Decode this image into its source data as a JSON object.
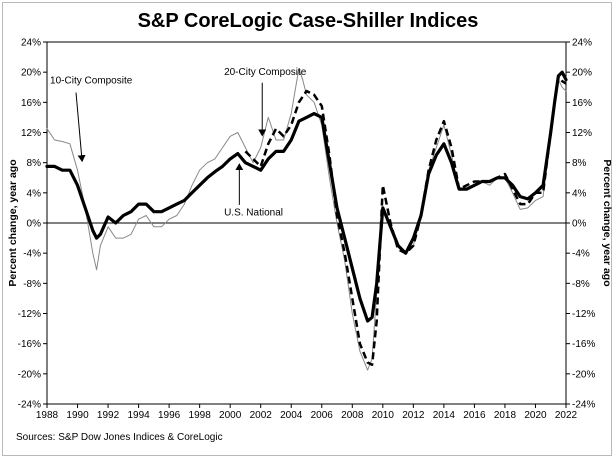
{
  "chart_data": {
    "type": "line",
    "title": "S&P CoreLogic Case-Shiller Indices",
    "ylabel": "Percent change, year ago",
    "ylabel_right": "Percent change, year ago",
    "source": "Sources: S&P Dow Jones Indices & CoreLogic",
    "xlim": [
      1988,
      2022
    ],
    "ylim": [
      -24,
      24
    ],
    "x_ticks": [
      "1988",
      "1990",
      "1992",
      "1994",
      "1996",
      "1998",
      "2000",
      "2002",
      "2004",
      "2006",
      "2008",
      "2010",
      "2012",
      "2014",
      "2016",
      "2018",
      "2020",
      "2022"
    ],
    "y_ticks": [
      "24%",
      "20%",
      "16%",
      "12%",
      "8%",
      "4%",
      "0%",
      "-4%",
      "-8%",
      "-12%",
      "-16%",
      "-20%",
      "-24%"
    ],
    "grid": false,
    "annotations": [
      {
        "text": "10-City Composite",
        "series": "10-City Composite"
      },
      {
        "text": "20-City Composite",
        "series": "20-City Composite"
      },
      {
        "text": "U.S. National",
        "series": "U.S. National"
      }
    ],
    "series": [
      {
        "name": "10-City Composite",
        "style": "thin",
        "color": "#888888",
        "points": [
          [
            1988,
            12.5
          ],
          [
            1988.5,
            11
          ],
          [
            1989,
            10.8
          ],
          [
            1989.5,
            10.5
          ],
          [
            1990,
            7
          ],
          [
            1990.5,
            2
          ],
          [
            1991,
            -4
          ],
          [
            1991.25,
            -6.2
          ],
          [
            1991.5,
            -3
          ],
          [
            1992,
            -0.5
          ],
          [
            1992.5,
            -2
          ],
          [
            1993,
            -2
          ],
          [
            1993.5,
            -1.5
          ],
          [
            1994,
            0.5
          ],
          [
            1994.5,
            1
          ],
          [
            1995,
            -0.5
          ],
          [
            1995.5,
            -0.5
          ],
          [
            1996,
            0.5
          ],
          [
            1996.5,
            1
          ],
          [
            1997,
            2.5
          ],
          [
            1997.5,
            5
          ],
          [
            1998,
            7
          ],
          [
            1998.5,
            8
          ],
          [
            1999,
            8.5
          ],
          [
            1999.5,
            10
          ],
          [
            2000,
            11.5
          ],
          [
            2000.5,
            12
          ],
          [
            2001,
            10
          ],
          [
            2001.5,
            8
          ],
          [
            2002,
            10
          ],
          [
            2002.5,
            14
          ],
          [
            2003,
            11
          ],
          [
            2003.5,
            11
          ],
          [
            2004,
            14.5
          ],
          [
            2004.5,
            20.5
          ],
          [
            2004.75,
            19
          ],
          [
            2005,
            17
          ],
          [
            2005.5,
            16
          ],
          [
            2006,
            13
          ],
          [
            2006.5,
            6
          ],
          [
            2007,
            0
          ],
          [
            2007.5,
            -5
          ],
          [
            2008,
            -12
          ],
          [
            2008.5,
            -17
          ],
          [
            2009,
            -19.5
          ],
          [
            2009.3,
            -18
          ],
          [
            2009.5,
            -12
          ],
          [
            2010,
            2
          ],
          [
            2010.5,
            0
          ],
          [
            2011,
            -3
          ],
          [
            2011.5,
            -4
          ],
          [
            2012,
            -3
          ],
          [
            2012.5,
            1
          ],
          [
            2013,
            7
          ],
          [
            2013.5,
            10
          ],
          [
            2014,
            13
          ],
          [
            2014.5,
            9
          ],
          [
            2015,
            4.5
          ],
          [
            2015.5,
            4.5
          ],
          [
            2016,
            5
          ],
          [
            2016.5,
            5.5
          ],
          [
            2017,
            5
          ],
          [
            2017.5,
            6
          ],
          [
            2018,
            6
          ],
          [
            2018.5,
            4
          ],
          [
            2019,
            1.8
          ],
          [
            2019.5,
            2
          ],
          [
            2020,
            3
          ],
          [
            2020.5,
            3.5
          ],
          [
            2021,
            12
          ],
          [
            2021.25,
            16
          ],
          [
            2021.5,
            19
          ],
          [
            2021.75,
            18
          ],
          [
            2022,
            17.5
          ]
        ]
      },
      {
        "name": "20-City Composite",
        "style": "dashed",
        "color": "#000000",
        "points": [
          [
            2001,
            9.5
          ],
          [
            2001.5,
            8.5
          ],
          [
            2002,
            7.5
          ],
          [
            2002.5,
            10.5
          ],
          [
            2003,
            12.5
          ],
          [
            2003.5,
            11.5
          ],
          [
            2004,
            13
          ],
          [
            2004.5,
            16
          ],
          [
            2005,
            17.5
          ],
          [
            2005.5,
            17
          ],
          [
            2006,
            15.5
          ],
          [
            2006.5,
            9
          ],
          [
            2007,
            1
          ],
          [
            2007.5,
            -4
          ],
          [
            2008,
            -10
          ],
          [
            2008.5,
            -16
          ],
          [
            2009,
            -18.5
          ],
          [
            2009.3,
            -18.8
          ],
          [
            2009.6,
            -13
          ],
          [
            2010,
            5
          ],
          [
            2010.5,
            0
          ],
          [
            2011,
            -3.5
          ],
          [
            2011.5,
            -4
          ],
          [
            2012,
            -3
          ],
          [
            2012.5,
            1
          ],
          [
            2013,
            7
          ],
          [
            2013.5,
            11
          ],
          [
            2014,
            13.5
          ],
          [
            2014.5,
            10
          ],
          [
            2015,
            4.5
          ],
          [
            2015.5,
            5
          ],
          [
            2016,
            5.5
          ],
          [
            2016.5,
            5.5
          ],
          [
            2017,
            5.5
          ],
          [
            2017.5,
            6
          ],
          [
            2018,
            6.5
          ],
          [
            2018.5,
            4.5
          ],
          [
            2019,
            2.5
          ],
          [
            2019.5,
            2.5
          ],
          [
            2020,
            4
          ],
          [
            2020.5,
            4
          ],
          [
            2021,
            12
          ],
          [
            2021.25,
            16
          ],
          [
            2021.5,
            19.5
          ],
          [
            2021.75,
            18.8
          ],
          [
            2022,
            18.5
          ]
        ]
      },
      {
        "name": "U.S. National",
        "style": "thick",
        "color": "#000000",
        "points": [
          [
            1988,
            7.5
          ],
          [
            1988.5,
            7.5
          ],
          [
            1989,
            7
          ],
          [
            1989.5,
            7
          ],
          [
            1990,
            5
          ],
          [
            1990.5,
            2
          ],
          [
            1991,
            -1
          ],
          [
            1991.25,
            -2
          ],
          [
            1991.5,
            -1.5
          ],
          [
            1992,
            0.8
          ],
          [
            1992.5,
            0
          ],
          [
            1993,
            1
          ],
          [
            1993.5,
            1.5
          ],
          [
            1994,
            2.5
          ],
          [
            1994.5,
            2.5
          ],
          [
            1995,
            1.5
          ],
          [
            1995.5,
            1.5
          ],
          [
            1996,
            2
          ],
          [
            1996.5,
            2.5
          ],
          [
            1997,
            3
          ],
          [
            1997.5,
            4
          ],
          [
            1998,
            5
          ],
          [
            1998.5,
            6
          ],
          [
            1999,
            6.8
          ],
          [
            1999.5,
            7.5
          ],
          [
            2000,
            8.5
          ],
          [
            2000.5,
            9.2
          ],
          [
            2001,
            8
          ],
          [
            2001.5,
            7.5
          ],
          [
            2002,
            7
          ],
          [
            2002.5,
            8.5
          ],
          [
            2003,
            9.5
          ],
          [
            2003.5,
            9.5
          ],
          [
            2004,
            11
          ],
          [
            2004.5,
            13.5
          ],
          [
            2005,
            14
          ],
          [
            2005.5,
            14.5
          ],
          [
            2006,
            14
          ],
          [
            2006.5,
            8
          ],
          [
            2007,
            2
          ],
          [
            2007.5,
            -2
          ],
          [
            2008,
            -6
          ],
          [
            2008.5,
            -10
          ],
          [
            2009,
            -13
          ],
          [
            2009.3,
            -12.5
          ],
          [
            2009.6,
            -8
          ],
          [
            2010,
            2
          ],
          [
            2010.5,
            -0.5
          ],
          [
            2011,
            -3
          ],
          [
            2011.5,
            -4
          ],
          [
            2012,
            -2
          ],
          [
            2012.5,
            1
          ],
          [
            2013,
            6.5
          ],
          [
            2013.5,
            9
          ],
          [
            2014,
            10.5
          ],
          [
            2014.5,
            8
          ],
          [
            2015,
            4.5
          ],
          [
            2015.5,
            4.5
          ],
          [
            2016,
            5
          ],
          [
            2016.5,
            5.5
          ],
          [
            2017,
            5.5
          ],
          [
            2017.5,
            6
          ],
          [
            2018,
            6
          ],
          [
            2018.5,
            5
          ],
          [
            2019,
            3.5
          ],
          [
            2019.5,
            3.2
          ],
          [
            2020,
            4
          ],
          [
            2020.5,
            5
          ],
          [
            2021,
            12
          ],
          [
            2021.25,
            16
          ],
          [
            2021.5,
            19.5
          ],
          [
            2021.75,
            20
          ],
          [
            2022,
            19
          ]
        ]
      }
    ]
  }
}
